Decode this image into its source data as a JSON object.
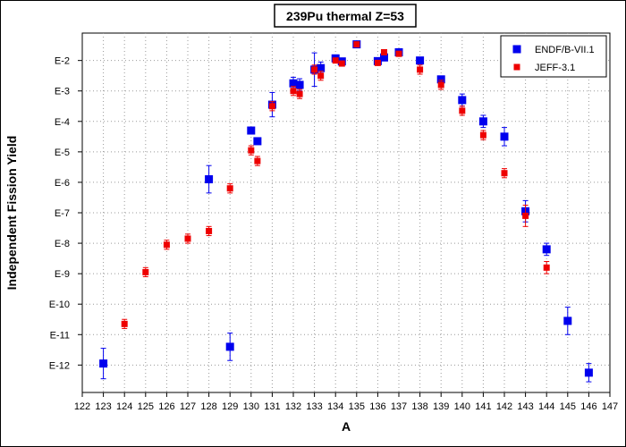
{
  "chart_data": {
    "type": "scatter",
    "title": "239Pu thermal Z=53",
    "xlabel": "A",
    "ylabel": "Independent Fission Yield",
    "xlim": [
      122,
      147
    ],
    "ylim_exponent": [
      -12.9,
      -1.1
    ],
    "yscale": "log",
    "grid": true,
    "legend_position": "top-right",
    "x_ticks": [
      122,
      123,
      124,
      125,
      126,
      127,
      128,
      129,
      130,
      131,
      132,
      133,
      134,
      135,
      136,
      137,
      138,
      139,
      140,
      141,
      142,
      143,
      144,
      145,
      146,
      147
    ],
    "y_ticks": [
      {
        "exp": -2,
        "label": "E-2"
      },
      {
        "exp": -3,
        "label": "E-3"
      },
      {
        "exp": -4,
        "label": "E-4"
      },
      {
        "exp": -5,
        "label": "E-5"
      },
      {
        "exp": -6,
        "label": "E-6"
      },
      {
        "exp": -7,
        "label": "E-7"
      },
      {
        "exp": -8,
        "label": "E-8"
      },
      {
        "exp": -9,
        "label": "E-9"
      },
      {
        "exp": -10,
        "label": "E-10"
      },
      {
        "exp": -11,
        "label": "E-11"
      },
      {
        "exp": -12,
        "label": "E-12"
      }
    ],
    "series": [
      {
        "name": "ENDF/B-VII.1",
        "color": "#0000ee",
        "marker": "square",
        "points": [
          {
            "x": 123,
            "exp": -11.95,
            "err": 0.5
          },
          {
            "x": 128,
            "exp": -5.9,
            "err": 0.45
          },
          {
            "x": 129,
            "exp": -11.4,
            "err": 0.45
          },
          {
            "x": 130,
            "exp": -4.3,
            "err": 0.1
          },
          {
            "x": 130.3,
            "exp": -4.65,
            "err": 0.1
          },
          {
            "x": 131,
            "exp": -3.45,
            "err": 0.4
          },
          {
            "x": 132,
            "exp": -2.75,
            "err": 0.2
          },
          {
            "x": 132.3,
            "exp": -2.8,
            "err": 0.2
          },
          {
            "x": 133,
            "exp": -2.3,
            "err": 0.55
          },
          {
            "x": 133.3,
            "exp": -2.25,
            "err": 0.2
          },
          {
            "x": 134,
            "exp": -1.93,
            "err": 0.05
          },
          {
            "x": 134.3,
            "exp": -2.03,
            "err": 0.05
          },
          {
            "x": 135,
            "exp": -1.47,
            "err": 0.05
          },
          {
            "x": 136,
            "exp": -2.02,
            "err": 0.05
          },
          {
            "x": 136.3,
            "exp": -1.9,
            "err": 0.05
          },
          {
            "x": 137,
            "exp": -1.73,
            "err": 0.05
          },
          {
            "x": 138,
            "exp": -2.0,
            "err": 0.05
          },
          {
            "x": 139,
            "exp": -2.62,
            "err": 0.05
          },
          {
            "x": 140,
            "exp": -3.3,
            "err": 0.2
          },
          {
            "x": 141,
            "exp": -4.0,
            "err": 0.2
          },
          {
            "x": 142,
            "exp": -4.5,
            "err": 0.3
          },
          {
            "x": 143,
            "exp": -6.95,
            "err": 0.35
          },
          {
            "x": 144,
            "exp": -8.2,
            "err": 0.2
          },
          {
            "x": 145,
            "exp": -10.55,
            "err": 0.45
          },
          {
            "x": 146,
            "exp": -12.25,
            "err": 0.3
          }
        ]
      },
      {
        "name": "JEFF-3.1",
        "color": "#ee0000",
        "marker": "square",
        "points": [
          {
            "x": 124,
            "exp": -10.65,
            "err": 0.15
          },
          {
            "x": 125,
            "exp": -8.95,
            "err": 0.15
          },
          {
            "x": 126,
            "exp": -8.05,
            "err": 0.15
          },
          {
            "x": 127,
            "exp": -7.85,
            "err": 0.15
          },
          {
            "x": 128,
            "exp": -7.6,
            "err": 0.15
          },
          {
            "x": 129,
            "exp": -6.2,
            "err": 0.15
          },
          {
            "x": 130,
            "exp": -4.95,
            "err": 0.15
          },
          {
            "x": 130.3,
            "exp": -5.3,
            "err": 0.15
          },
          {
            "x": 131,
            "exp": -3.5,
            "err": 0.15
          },
          {
            "x": 132,
            "exp": -3.0,
            "err": 0.15
          },
          {
            "x": 132.3,
            "exp": -3.1,
            "err": 0.15
          },
          {
            "x": 133,
            "exp": -2.3,
            "err": 0.15
          },
          {
            "x": 133.3,
            "exp": -2.5,
            "err": 0.15
          },
          {
            "x": 134,
            "exp": -2.0,
            "err": 0.05
          },
          {
            "x": 134.3,
            "exp": -2.1,
            "err": 0.05
          },
          {
            "x": 135,
            "exp": -1.47,
            "err": 0.05
          },
          {
            "x": 136,
            "exp": -2.08,
            "err": 0.05
          },
          {
            "x": 136.3,
            "exp": -1.73,
            "err": 0.05
          },
          {
            "x": 137,
            "exp": -1.78,
            "err": 0.05
          },
          {
            "x": 138,
            "exp": -2.3,
            "err": 0.15
          },
          {
            "x": 139,
            "exp": -2.8,
            "err": 0.15
          },
          {
            "x": 140,
            "exp": -3.65,
            "err": 0.15
          },
          {
            "x": 141,
            "exp": -4.45,
            "err": 0.15
          },
          {
            "x": 142,
            "exp": -5.7,
            "err": 0.15
          },
          {
            "x": 143,
            "exp": -7.1,
            "err": 0.35
          },
          {
            "x": 144,
            "exp": -8.8,
            "err": 0.2
          }
        ]
      }
    ]
  }
}
